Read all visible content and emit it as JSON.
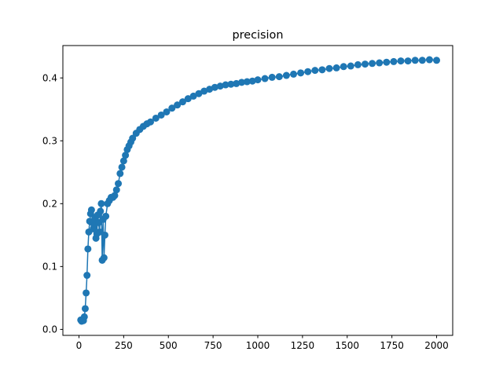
{
  "chart_data": {
    "type": "line",
    "title": "precision",
    "xlabel": "",
    "ylabel": "",
    "xlim": [
      -90,
      2090
    ],
    "ylim": [
      -0.0095,
      0.4515
    ],
    "x_ticks": [
      0,
      250,
      500,
      750,
      1000,
      1250,
      1500,
      1750,
      2000
    ],
    "x_tick_labels": [
      "0",
      "250",
      "500",
      "750",
      "1000",
      "1250",
      "1500",
      "1750",
      "2000"
    ],
    "y_ticks": [
      0.0,
      0.1,
      0.2,
      0.3,
      0.4
    ],
    "y_tick_labels": [
      "0.0",
      "0.1",
      "0.2",
      "0.3",
      "0.4"
    ],
    "grid": false,
    "marker": "circle",
    "color": "#1f77b4",
    "series": [
      {
        "name": "",
        "x": [
          10,
          15,
          20,
          25,
          30,
          35,
          40,
          45,
          50,
          55,
          60,
          65,
          70,
          75,
          80,
          85,
          90,
          95,
          100,
          105,
          110,
          115,
          120,
          125,
          130,
          135,
          140,
          145,
          150,
          160,
          170,
          180,
          190,
          200,
          210,
          220,
          230,
          240,
          250,
          260,
          270,
          280,
          290,
          300,
          320,
          340,
          360,
          380,
          400,
          430,
          460,
          490,
          520,
          550,
          580,
          610,
          640,
          670,
          700,
          730,
          760,
          790,
          820,
          850,
          880,
          910,
          940,
          970,
          1000,
          1040,
          1080,
          1120,
          1160,
          1200,
          1240,
          1280,
          1320,
          1360,
          1400,
          1440,
          1480,
          1520,
          1560,
          1600,
          1640,
          1680,
          1720,
          1760,
          1800,
          1840,
          1880,
          1920,
          1960,
          2000
        ],
        "y": [
          0.015,
          0.013,
          0.016,
          0.014,
          0.02,
          0.033,
          0.058,
          0.086,
          0.128,
          0.155,
          0.172,
          0.184,
          0.19,
          0.17,
          0.16,
          0.165,
          0.178,
          0.145,
          0.152,
          0.182,
          0.17,
          0.155,
          0.188,
          0.2,
          0.11,
          0.175,
          0.114,
          0.15,
          0.18,
          0.2,
          0.205,
          0.21,
          0.21,
          0.213,
          0.222,
          0.232,
          0.248,
          0.258,
          0.268,
          0.277,
          0.286,
          0.292,
          0.298,
          0.304,
          0.312,
          0.318,
          0.323,
          0.327,
          0.33,
          0.336,
          0.341,
          0.346,
          0.352,
          0.357,
          0.362,
          0.367,
          0.371,
          0.375,
          0.379,
          0.382,
          0.385,
          0.387,
          0.389,
          0.39,
          0.391,
          0.393,
          0.394,
          0.395,
          0.397,
          0.399,
          0.401,
          0.402,
          0.404,
          0.406,
          0.408,
          0.41,
          0.412,
          0.413,
          0.415,
          0.416,
          0.418,
          0.419,
          0.421,
          0.422,
          0.423,
          0.424,
          0.425,
          0.426,
          0.427,
          0.427,
          0.428,
          0.428,
          0.429,
          0.428
        ]
      }
    ]
  }
}
